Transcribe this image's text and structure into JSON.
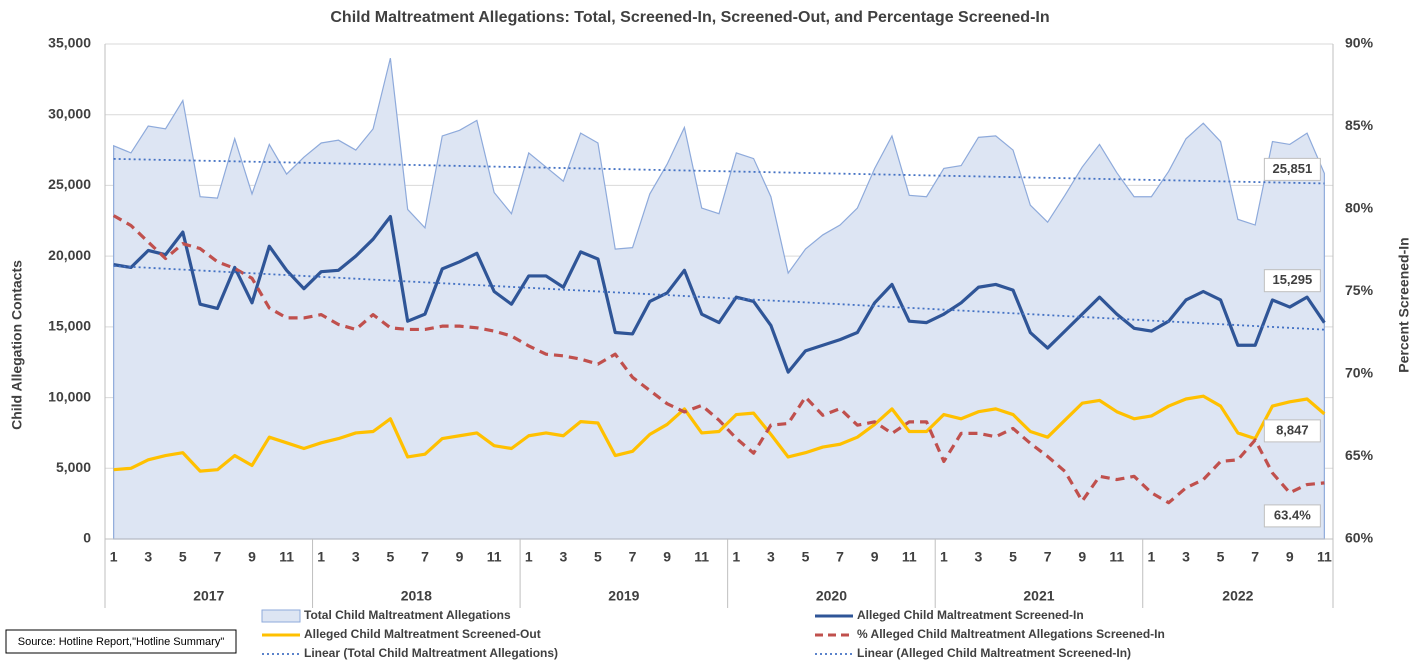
{
  "chart_data": {
    "type": "line",
    "title": "Child Maltreatment Allegations: Total, Screened-In, Screened-Out, and Percentage Screened-In",
    "y_label": "Child Allegation Contacts",
    "y2_label": "Percent Screened-In",
    "source": "Source: Hotline Report,\"Hotline Summary\"",
    "categories": [
      "1",
      null,
      "3",
      null,
      "5",
      null,
      "7",
      null,
      "9",
      null,
      "11",
      null,
      "1",
      null,
      "3",
      null,
      "5",
      null,
      "7",
      null,
      "9",
      null,
      "11",
      null,
      "1",
      null,
      "3",
      null,
      "5",
      null,
      "7",
      null,
      "9",
      null,
      "11",
      null,
      "1",
      null,
      "3",
      null,
      "5",
      null,
      "7",
      null,
      "9",
      null,
      "11",
      null,
      "1",
      null,
      "3",
      null,
      "5",
      null,
      "7",
      null,
      "9",
      null,
      "11",
      null,
      "1",
      null,
      "3",
      null,
      "5",
      null,
      "7",
      null,
      "9",
      null,
      "11"
    ],
    "year_labels": [
      "2017",
      "2018",
      "2019",
      "2020",
      "2021",
      "2022"
    ],
    "ylim": [
      0,
      35000
    ],
    "yticks": [
      0,
      {
        "value": 5000,
        "label": "5,000"
      },
      {
        "value": 10000,
        "label": "10,000"
      },
      {
        "value": 15000,
        "label": "15,000"
      },
      {
        "value": 20000,
        "label": "20,000"
      },
      {
        "value": 25000,
        "label": "25,000"
      },
      {
        "value": 30000,
        "label": "30,000"
      },
      {
        "value": 35000,
        "label": "35,000"
      }
    ],
    "y2lim": [
      60,
      90
    ],
    "y2ticks": [
      {
        "value": 60,
        "label": "60%"
      },
      {
        "value": 65,
        "label": "65%"
      },
      {
        "value": 70,
        "label": "70%"
      },
      {
        "value": 75,
        "label": "75%"
      },
      {
        "value": 80,
        "label": "80%"
      },
      {
        "value": 85,
        "label": "85%"
      },
      {
        "value": 90,
        "label": "90%"
      }
    ],
    "series": [
      {
        "name": "Total Child Maltreatment Allegations",
        "style": "area",
        "color": "#8eaadb",
        "fill": "#dde5f3",
        "values": [
          27800,
          27300,
          29200,
          29000,
          31000,
          24200,
          24100,
          28300,
          24400,
          27900,
          25800,
          27000,
          28000,
          28200,
          27500,
          29000,
          34000,
          23300,
          22000,
          28500,
          28900,
          29600,
          24500,
          23000,
          27300,
          26300,
          25300,
          28700,
          28000,
          20500,
          20600,
          24400,
          26500,
          29100,
          23400,
          23000,
          27300,
          26900,
          24200,
          18800,
          20500,
          21500,
          22200,
          23400,
          26200,
          28500,
          24300,
          24200,
          26200,
          26400,
          28400,
          28500,
          27500,
          23600,
          22400,
          24300,
          26300,
          27900,
          25900,
          24200,
          24200,
          26000,
          28300,
          29400,
          28100,
          22600,
          22200,
          28100,
          27900,
          28700,
          25851
        ],
        "value_labels": [
          null,
          null,
          null,
          null,
          null,
          null,
          null,
          null,
          null,
          null,
          null,
          null,
          null,
          null,
          null,
          null,
          null,
          null,
          null,
          null,
          null,
          null,
          null,
          null,
          null,
          null,
          null,
          null,
          null,
          null,
          null,
          null,
          null,
          null,
          null,
          null,
          null,
          null,
          null,
          null,
          null,
          null,
          null,
          null,
          null,
          null,
          null,
          null,
          null,
          null,
          null,
          null,
          null,
          null,
          null,
          null,
          null,
          null,
          null,
          null,
          null,
          null,
          null,
          null,
          null,
          null,
          null,
          null,
          null,
          null,
          "25,851"
        ],
        "trendline": {
          "name": "Linear (Total Child Maltreatment Allegations)",
          "color": "#4472c4"
        }
      },
      {
        "name": "Alleged Child Maltreatment Screened-In",
        "style": "solid",
        "color": "#2f5597",
        "values": [
          19400,
          19200,
          20400,
          20100,
          21700,
          16600,
          16300,
          19200,
          16700,
          20700,
          19000,
          17700,
          18900,
          19000,
          20000,
          21200,
          22800,
          15400,
          15900,
          19100,
          19600,
          20200,
          17500,
          16600,
          18600,
          18600,
          17800,
          20300,
          19800,
          14600,
          14500,
          16800,
          17400,
          19000,
          15900,
          15300,
          17100,
          16800,
          15100,
          11800,
          13300,
          13700,
          14100,
          14600,
          16700,
          18000,
          15400,
          15300,
          15900,
          16700,
          17800,
          18000,
          17600,
          14600,
          13500,
          14700,
          15900,
          17100,
          15900,
          14900,
          14700,
          15400,
          16900,
          17500,
          16900,
          13700,
          13700,
          16900,
          16400,
          17100,
          15295
        ],
        "value_labels": [
          null,
          null,
          null,
          null,
          null,
          null,
          null,
          null,
          null,
          null,
          null,
          null,
          null,
          null,
          null,
          null,
          null,
          null,
          null,
          null,
          null,
          null,
          null,
          null,
          null,
          null,
          null,
          null,
          null,
          null,
          null,
          null,
          null,
          null,
          null,
          null,
          null,
          null,
          null,
          null,
          null,
          null,
          null,
          null,
          null,
          null,
          null,
          null,
          null,
          null,
          null,
          null,
          null,
          null,
          null,
          null,
          null,
          null,
          null,
          null,
          null,
          null,
          null,
          null,
          null,
          null,
          null,
          null,
          null,
          null,
          "15,295"
        ],
        "trendline": {
          "name": "Linear (Alleged Child Maltreatment Screened-In)",
          "color": "#4472c4"
        }
      },
      {
        "name": "Alleged Child Maltreatment Screened-Out",
        "style": "solid",
        "color": "#ffc000",
        "values": [
          4900,
          5000,
          5600,
          5900,
          6100,
          4800,
          4900,
          5900,
          5200,
          7200,
          6800,
          6400,
          6800,
          7100,
          7500,
          7600,
          8500,
          5800,
          6000,
          7100,
          7300,
          7500,
          6600,
          6400,
          7300,
          7500,
          7300,
          8300,
          8200,
          5900,
          6200,
          7400,
          8100,
          9200,
          7500,
          7600,
          8800,
          8900,
          7400,
          5800,
          6100,
          6500,
          6700,
          7200,
          8100,
          9200,
          7600,
          7600,
          8800,
          8500,
          9000,
          9200,
          8800,
          7600,
          7200,
          8400,
          9600,
          9800,
          9000,
          8500,
          8700,
          9400,
          9900,
          10100,
          9400,
          7500,
          7100,
          9400,
          9700,
          9900,
          8847
        ],
        "value_labels": [
          null,
          null,
          null,
          null,
          null,
          null,
          null,
          null,
          null,
          null,
          null,
          null,
          null,
          null,
          null,
          null,
          null,
          null,
          null,
          null,
          null,
          null,
          null,
          null,
          null,
          null,
          null,
          null,
          null,
          null,
          null,
          null,
          null,
          null,
          null,
          null,
          null,
          null,
          null,
          null,
          null,
          null,
          null,
          null,
          null,
          null,
          null,
          null,
          null,
          null,
          null,
          null,
          null,
          null,
          null,
          null,
          null,
          null,
          null,
          null,
          null,
          null,
          null,
          null,
          null,
          null,
          null,
          null,
          null,
          null,
          "8,847"
        ]
      },
      {
        "name": "% Alleged Child Maltreatment Allegations Screened-In",
        "style": "dashed",
        "color": "#c0504d",
        "axis": "y2",
        "values": [
          79.6,
          79.0,
          78.0,
          77.0,
          77.9,
          77.6,
          76.8,
          76.4,
          75.8,
          74.0,
          73.4,
          73.4,
          73.6,
          73.0,
          72.7,
          73.6,
          72.8,
          72.7,
          72.7,
          72.9,
          72.9,
          72.8,
          72.6,
          72.3,
          71.7,
          71.2,
          71.1,
          70.9,
          70.6,
          71.2,
          69.8,
          69.0,
          68.2,
          67.7,
          68.1,
          67.2,
          66.1,
          65.2,
          66.9,
          67.0,
          68.6,
          67.5,
          67.9,
          66.9,
          67.1,
          66.4,
          67.1,
          67.1,
          64.7,
          66.4,
          66.4,
          66.2,
          66.7,
          65.8,
          65.0,
          64.1,
          62.3,
          63.8,
          63.6,
          63.8,
          62.8,
          62.2,
          63.1,
          63.6,
          64.7,
          64.8,
          66.0,
          64.0,
          62.8,
          63.3,
          63.4
        ],
        "value_labels": [
          null,
          null,
          null,
          null,
          null,
          null,
          null,
          null,
          null,
          null,
          null,
          null,
          null,
          null,
          null,
          null,
          null,
          null,
          null,
          null,
          null,
          null,
          null,
          null,
          null,
          null,
          null,
          null,
          null,
          null,
          null,
          null,
          null,
          null,
          null,
          null,
          null,
          null,
          null,
          null,
          null,
          null,
          null,
          null,
          null,
          null,
          null,
          null,
          null,
          null,
          null,
          null,
          null,
          null,
          null,
          null,
          null,
          null,
          null,
          null,
          null,
          null,
          null,
          null,
          null,
          null,
          null,
          null,
          null,
          null,
          "63.4%"
        ]
      }
    ],
    "grid": true
  }
}
